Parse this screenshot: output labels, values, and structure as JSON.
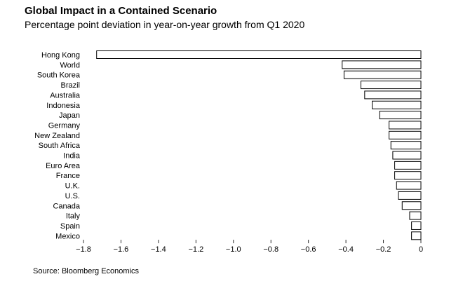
{
  "title": "Global Impact in a Contained Scenario",
  "subtitle": "Percentage point deviation in year-on-year growth from Q1 2020",
  "source": "Source: Bloomberg Economics",
  "colors": {
    "bar_fill": "#ffffff",
    "bar_stroke": "#000000",
    "text": "#000000"
  },
  "chart_data": {
    "type": "bar",
    "orientation": "horizontal",
    "title": "Global Impact in a Contained Scenario",
    "subtitle": "Percentage point deviation in year-on-year growth from Q1 2020",
    "xlabel": "",
    "ylabel": "",
    "xlim": [
      -1.8,
      0
    ],
    "xticks": [
      -1.8,
      -1.6,
      -1.4,
      -1.2,
      -1.0,
      -0.8,
      -0.6,
      -0.4,
      -0.2,
      0
    ],
    "xtick_labels": [
      "−1.8",
      "−1.6",
      "−1.4",
      "−1.2",
      "−1.0",
      "−0.8",
      "−0.6",
      "−0.4",
      "−0.2",
      "0"
    ],
    "grid": false,
    "categories": [
      "Hong Kong",
      "World",
      "South Korea",
      "Brazil",
      "Australia",
      "Indonesia",
      "Japan",
      "Germany",
      "New Zealand",
      "South Africa",
      "India",
      "Euro Area",
      "France",
      "U.K.",
      "U.S.",
      "Canada",
      "Italy",
      "Spain",
      "Mexico"
    ],
    "values": [
      -1.73,
      -0.42,
      -0.41,
      -0.32,
      -0.3,
      -0.26,
      -0.22,
      -0.17,
      -0.17,
      -0.16,
      -0.15,
      -0.14,
      -0.14,
      -0.13,
      -0.12,
      -0.1,
      -0.06,
      -0.05,
      -0.05
    ]
  }
}
